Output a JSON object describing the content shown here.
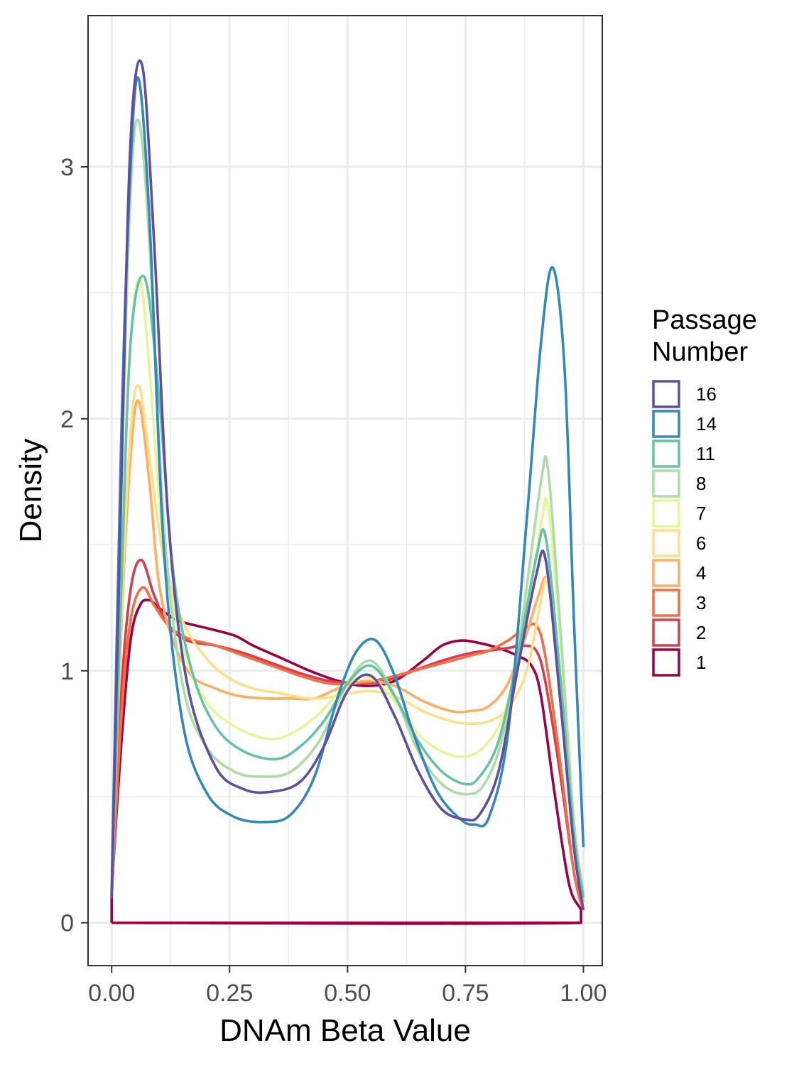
{
  "chart_data": {
    "type": "line",
    "xlabel": "DNAm Beta Value",
    "ylabel": "Density",
    "xlim": [
      -0.05,
      1.04
    ],
    "ylim": [
      -0.17,
      3.6
    ],
    "x_ticks": [
      0.0,
      0.25,
      0.5,
      0.75,
      1.0
    ],
    "x_tick_labels": [
      "0.00",
      "0.25",
      "0.50",
      "0.75",
      "1.00"
    ],
    "y_ticks": [
      0,
      1,
      2,
      3
    ],
    "y_tick_labels": [
      "0",
      "1",
      "2",
      "3"
    ],
    "grid": true,
    "legend": {
      "title": [
        "Passage",
        "Number"
      ],
      "placement": "right"
    },
    "series": [
      {
        "name": "16",
        "color": "#5E4FA2",
        "x": [
          0.0,
          0.02,
          0.04,
          0.065,
          0.09,
          0.12,
          0.16,
          0.22,
          0.28,
          0.34,
          0.4,
          0.45,
          0.5,
          0.55,
          0.6,
          0.65,
          0.7,
          0.75,
          0.78,
          0.82,
          0.86,
          0.9,
          0.92,
          0.95,
          0.98,
          1.0
        ],
        "y": [
          0.1,
          1.7,
          3.1,
          3.4,
          2.7,
          1.6,
          0.95,
          0.62,
          0.53,
          0.52,
          0.56,
          0.7,
          0.92,
          0.98,
          0.82,
          0.6,
          0.45,
          0.41,
          0.43,
          0.6,
          1.0,
          1.38,
          1.44,
          0.9,
          0.3,
          0.05
        ]
      },
      {
        "name": "14",
        "color": "#3288BD",
        "x": [
          0.0,
          0.02,
          0.04,
          0.057,
          0.08,
          0.11,
          0.15,
          0.2,
          0.26,
          0.33,
          0.38,
          0.43,
          0.48,
          0.52,
          0.56,
          0.6,
          0.64,
          0.69,
          0.74,
          0.77,
          0.8,
          0.84,
          0.88,
          0.91,
          0.935,
          0.96,
          0.98,
          1.0
        ],
        "y": [
          0.12,
          1.9,
          3.0,
          3.35,
          2.8,
          1.5,
          0.8,
          0.52,
          0.42,
          0.4,
          0.43,
          0.58,
          0.9,
          1.08,
          1.12,
          0.98,
          0.75,
          0.52,
          0.41,
          0.39,
          0.42,
          0.75,
          1.6,
          2.3,
          2.6,
          2.2,
          1.2,
          0.3
        ]
      },
      {
        "name": "11",
        "color": "#66C2A5",
        "x": [
          0.0,
          0.02,
          0.04,
          0.07,
          0.1,
          0.13,
          0.17,
          0.22,
          0.28,
          0.35,
          0.4,
          0.45,
          0.5,
          0.55,
          0.6,
          0.65,
          0.7,
          0.75,
          0.78,
          0.82,
          0.86,
          0.9,
          0.92,
          0.95,
          0.98,
          1.0
        ],
        "y": [
          0.1,
          1.3,
          2.3,
          2.56,
          2.1,
          1.4,
          1.0,
          0.78,
          0.68,
          0.65,
          0.7,
          0.8,
          0.95,
          1.02,
          0.9,
          0.72,
          0.6,
          0.55,
          0.58,
          0.72,
          1.05,
          1.45,
          1.53,
          1.0,
          0.35,
          0.1
        ]
      },
      {
        "name": "8",
        "color": "#ABDDA4",
        "x": [
          0.0,
          0.02,
          0.04,
          0.058,
          0.08,
          0.11,
          0.15,
          0.2,
          0.26,
          0.32,
          0.38,
          0.44,
          0.5,
          0.55,
          0.6,
          0.65,
          0.7,
          0.75,
          0.79,
          0.83,
          0.87,
          0.91,
          0.925,
          0.95,
          0.98,
          1.0
        ],
        "y": [
          0.1,
          1.7,
          2.9,
          3.18,
          2.7,
          1.6,
          0.95,
          0.7,
          0.6,
          0.58,
          0.6,
          0.72,
          0.95,
          1.04,
          0.9,
          0.68,
          0.55,
          0.51,
          0.55,
          0.75,
          1.2,
          1.75,
          1.8,
          1.2,
          0.4,
          0.12
        ]
      },
      {
        "name": "7",
        "color": "#E6F598",
        "x": [
          0.0,
          0.02,
          0.04,
          0.06,
          0.08,
          0.11,
          0.15,
          0.2,
          0.26,
          0.33,
          0.38,
          0.44,
          0.5,
          0.55,
          0.6,
          0.65,
          0.7,
          0.75,
          0.79,
          0.83,
          0.87,
          0.91,
          0.925,
          0.95,
          0.98,
          1.0
        ],
        "y": [
          0.1,
          1.4,
          2.3,
          2.55,
          2.2,
          1.5,
          1.1,
          0.88,
          0.78,
          0.73,
          0.75,
          0.83,
          0.95,
          0.97,
          0.88,
          0.75,
          0.68,
          0.66,
          0.7,
          0.82,
          1.1,
          1.58,
          1.65,
          1.15,
          0.4,
          0.12
        ]
      },
      {
        "name": "6",
        "color": "#FEE08B",
        "x": [
          0.0,
          0.02,
          0.04,
          0.058,
          0.08,
          0.11,
          0.15,
          0.2,
          0.25,
          0.3,
          0.36,
          0.42,
          0.48,
          0.54,
          0.6,
          0.66,
          0.72,
          0.76,
          0.8,
          0.84,
          0.88,
          0.91,
          0.925,
          0.95,
          0.98,
          1.0
        ],
        "y": [
          0.12,
          1.2,
          1.95,
          2.13,
          1.85,
          1.45,
          1.2,
          1.05,
          0.97,
          0.93,
          0.91,
          0.89,
          0.9,
          0.92,
          0.9,
          0.84,
          0.8,
          0.79,
          0.8,
          0.85,
          1.0,
          1.28,
          1.35,
          1.0,
          0.4,
          0.1
        ]
      },
      {
        "name": "4",
        "color": "#FDAE61",
        "x": [
          0.0,
          0.02,
          0.04,
          0.057,
          0.08,
          0.1,
          0.13,
          0.17,
          0.22,
          0.27,
          0.33,
          0.38,
          0.43,
          0.48,
          0.54,
          0.6,
          0.66,
          0.72,
          0.76,
          0.8,
          0.84,
          0.88,
          0.905,
          0.925,
          0.95,
          0.98,
          1.0
        ],
        "y": [
          0.12,
          1.15,
          1.85,
          2.07,
          1.75,
          1.35,
          1.12,
          0.98,
          0.93,
          0.9,
          0.89,
          0.89,
          0.89,
          0.93,
          0.96,
          0.94,
          0.88,
          0.84,
          0.84,
          0.86,
          0.95,
          1.15,
          1.3,
          1.35,
          0.95,
          0.35,
          0.08
        ]
      },
      {
        "name": "3",
        "color": "#F46D43",
        "x": [
          0.0,
          0.02,
          0.04,
          0.065,
          0.09,
          0.12,
          0.16,
          0.22,
          0.28,
          0.34,
          0.4,
          0.46,
          0.52,
          0.58,
          0.64,
          0.7,
          0.76,
          0.8,
          0.84,
          0.87,
          0.9,
          0.92,
          0.95,
          0.98,
          1.0
        ],
        "y": [
          0.1,
          0.8,
          1.2,
          1.33,
          1.26,
          1.18,
          1.13,
          1.1,
          1.06,
          1.02,
          0.98,
          0.95,
          0.95,
          0.97,
          1.0,
          1.03,
          1.06,
          1.08,
          1.12,
          1.16,
          1.18,
          1.05,
          0.65,
          0.2,
          0.05
        ]
      },
      {
        "name": "2",
        "color": "#D53E4F",
        "x": [
          0.0,
          0.02,
          0.04,
          0.063,
          0.09,
          0.12,
          0.16,
          0.22,
          0.28,
          0.34,
          0.4,
          0.46,
          0.52,
          0.58,
          0.64,
          0.7,
          0.76,
          0.8,
          0.84,
          0.87,
          0.9,
          0.92,
          0.95,
          0.98,
          1.0
        ],
        "y": [
          0.1,
          0.9,
          1.32,
          1.44,
          1.3,
          1.18,
          1.12,
          1.1,
          1.07,
          1.03,
          0.99,
          0.96,
          0.95,
          0.96,
          1.0,
          1.04,
          1.07,
          1.08,
          1.09,
          1.1,
          1.08,
          0.95,
          0.6,
          0.2,
          0.05
        ]
      },
      {
        "name": "1",
        "color": "#9E0142",
        "x": [
          0.0,
          0.0,
          0.02,
          0.04,
          0.06,
          0.08,
          0.1,
          0.14,
          0.2,
          0.26,
          0.3,
          0.36,
          0.42,
          0.48,
          0.54,
          0.6,
          0.66,
          0.7,
          0.74,
          0.78,
          0.82,
          0.86,
          0.89,
          0.91,
          0.94,
          0.97,
          0.995,
          0.995,
          0.0
        ],
        "y": [
          0.0,
          0.12,
          0.7,
          1.12,
          1.26,
          1.28,
          1.25,
          1.2,
          1.17,
          1.14,
          1.1,
          1.05,
          1.0,
          0.96,
          0.94,
          0.96,
          1.04,
          1.1,
          1.12,
          1.11,
          1.09,
          1.06,
          1.02,
          0.9,
          0.5,
          0.15,
          0.05,
          0.0,
          0.0
        ]
      }
    ]
  }
}
